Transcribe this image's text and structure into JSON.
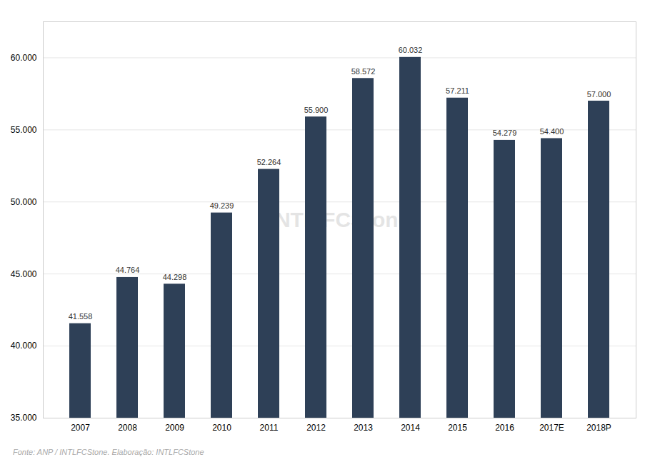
{
  "chart_data": {
    "type": "bar",
    "categories": [
      "2007",
      "2008",
      "2009",
      "2010",
      "2011",
      "2012",
      "2013",
      "2014",
      "2015",
      "2016",
      "2017E",
      "2018P"
    ],
    "values": [
      41558,
      44764,
      44298,
      49239,
      52264,
      55900,
      58572,
      60032,
      57211,
      54279,
      54400,
      57000
    ],
    "value_labels": [
      "41.558",
      "44.764",
      "44.298",
      "49.239",
      "52.264",
      "55.900",
      "58.572",
      "60.032",
      "57.211",
      "54.279",
      "54.400",
      "57.000"
    ],
    "data_labels": true,
    "color": "#2e4057",
    "ylim": [
      35000,
      62500
    ],
    "yticks": [
      {
        "value": 35000,
        "label": "35.000"
      },
      {
        "value": 40000,
        "label": "40.000"
      },
      {
        "value": 45000,
        "label": "45.000"
      },
      {
        "value": 50000,
        "label": "50.000"
      },
      {
        "value": 55000,
        "label": "55.000"
      },
      {
        "value": 60000,
        "label": "60.000"
      }
    ],
    "grid": true,
    "annotations": [
      "INTL FCStone"
    ],
    "caption": "Fonte: ANP / INTLFCStone.  Elaboração: INTLFCStone"
  }
}
